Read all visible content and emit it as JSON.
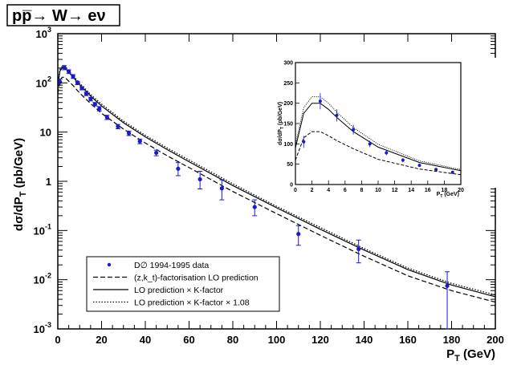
{
  "title": "pp̅→ W→ eν",
  "colors": {
    "data": "#1a1acc",
    "axis": "#000000",
    "frame": "#000000"
  },
  "chart_data": [
    {
      "type": "scatter",
      "xlabel": "P_T (GeV)",
      "ylabel": "dσ/dP_T (pb/GeV)",
      "xscale": "linear",
      "yscale": "log",
      "xlim": [
        0,
        200
      ],
      "ylim": [
        0.001,
        1000
      ],
      "x_ticks": [
        0,
        20,
        40,
        60,
        80,
        100,
        120,
        140,
        160,
        180,
        200
      ],
      "y_ticks": [
        {
          "v": 0.001,
          "label": "10",
          "exp": "-3"
        },
        {
          "v": 0.01,
          "label": "10",
          "exp": "-2"
        },
        {
          "v": 0.1,
          "label": "10",
          "exp": "-1"
        },
        {
          "v": 1,
          "label": "1",
          "exp": ""
        },
        {
          "v": 10,
          "label": "10",
          "exp": ""
        },
        {
          "v": 100,
          "label": "10",
          "exp": "2"
        },
        {
          "v": 1000,
          "label": "10",
          "exp": "3"
        }
      ],
      "legend_position": "bottom-left",
      "grid": false,
      "series": [
        {
          "name": "D∅ 1994-1995 data",
          "kind": "points",
          "x": [
            1,
            3,
            5,
            7,
            9,
            11,
            13,
            15,
            17,
            19,
            22.5,
            27.5,
            32.5,
            37.5,
            45,
            55,
            65,
            75,
            90,
            110,
            137.5,
            178
          ],
          "y": [
            105,
            205,
            170,
            135,
            100,
            78,
            60,
            47,
            37,
            30,
            20,
            13,
            9.5,
            6.5,
            3.8,
            1.8,
            1.1,
            0.72,
            0.3,
            0.085,
            0.042,
            0.0075
          ],
          "err_lo": [
            15,
            20,
            15,
            12,
            8,
            6,
            5,
            4,
            3,
            3,
            2,
            1.3,
            1,
            0.7,
            0.5,
            0.5,
            0.4,
            0.3,
            0.1,
            0.035,
            0.02,
            0.0065
          ],
          "err_hi": [
            15,
            20,
            15,
            12,
            8,
            6,
            5,
            4,
            3,
            3,
            2,
            1.3,
            1,
            0.7,
            0.5,
            0.6,
            0.5,
            0.35,
            0.12,
            0.04,
            0.022,
            0.007
          ]
        },
        {
          "name": "(z,k_t)-factorisation LO prediction",
          "kind": "dashed",
          "x": [
            0,
            1,
            2,
            3,
            4,
            5,
            7,
            10,
            15,
            20,
            30,
            40,
            50,
            60,
            80,
            100,
            120,
            140,
            160,
            180,
            200
          ],
          "y": [
            60,
            115,
            130,
            130,
            120,
            108,
            88,
            62,
            38,
            24,
            11.5,
            6,
            3.3,
            1.9,
            0.62,
            0.22,
            0.08,
            0.03,
            0.012,
            0.006,
            0.0035
          ]
        },
        {
          "name": "LO prediction × K-factor",
          "kind": "solid",
          "x": [
            0,
            1,
            2,
            3,
            4,
            5,
            7,
            10,
            15,
            20,
            30,
            40,
            50,
            60,
            80,
            100,
            120,
            140,
            160,
            180,
            200
          ],
          "y": [
            90,
            175,
            200,
            200,
            185,
            165,
            130,
            92,
            54,
            34,
            15.5,
            8,
            4.4,
            2.5,
            0.82,
            0.29,
            0.106,
            0.04,
            0.016,
            0.0078,
            0.0045
          ]
        },
        {
          "name": "LO prediction × K-factor × 1.08",
          "kind": "dotted",
          "x": [
            0,
            1,
            2,
            3,
            4,
            5,
            7,
            10,
            15,
            20,
            30,
            40,
            50,
            60,
            80,
            100,
            120,
            140,
            160,
            180,
            200
          ],
          "y": [
            97,
            189,
            216,
            216,
            200,
            178,
            140,
            99,
            58,
            37,
            16.7,
            8.6,
            4.75,
            2.7,
            0.89,
            0.31,
            0.115,
            0.043,
            0.0173,
            0.0084,
            0.0049
          ]
        }
      ]
    },
    {
      "type": "scatter",
      "inset": true,
      "xlabel": "P_T (GeV)",
      "ylabel": "dσ/dP_T (pb/GeV)",
      "xlim": [
        0,
        20
      ],
      "ylim": [
        0,
        300
      ],
      "x_ticks": [
        0,
        2,
        4,
        6,
        8,
        10,
        12,
        14,
        16,
        18,
        20
      ],
      "y_ticks": [
        0,
        50,
        100,
        150,
        200,
        250,
        300
      ],
      "series_ref": "same as main chart, restricted to 0-20 GeV"
    }
  ]
}
